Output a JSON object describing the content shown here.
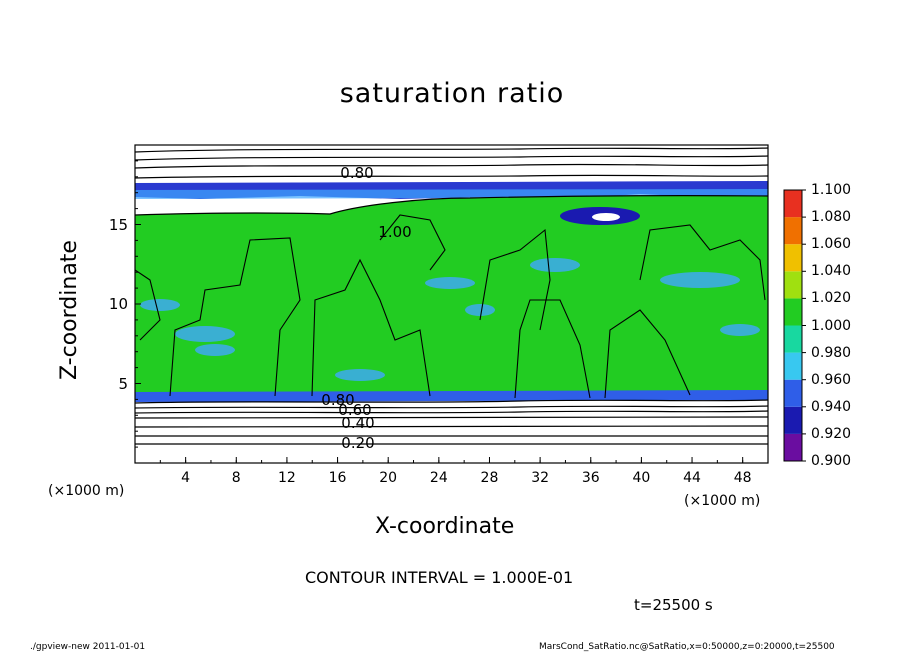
{
  "chart_data": {
    "type": "heatmap",
    "title": "saturation ratio",
    "xlabel": "X-coordinate",
    "ylabel": "Z-coordinate",
    "x_unit_left": "(×1000 m)",
    "x_unit_right": "(×1000 m)",
    "xlim": [
      0,
      50
    ],
    "ylim": [
      0,
      20
    ],
    "x_ticks": [
      "4",
      "8",
      "12",
      "16",
      "20",
      "24",
      "28",
      "32",
      "36",
      "40",
      "44",
      "48"
    ],
    "y_ticks": [
      "5",
      "10",
      "15"
    ],
    "colorbar": {
      "levels": [
        "0.900",
        "0.920",
        "0.940",
        "0.960",
        "0.980",
        "1.000",
        "1.020",
        "1.040",
        "1.060",
        "1.080",
        "1.100"
      ],
      "colors": [
        "#6a0da0",
        "#1a1ab0",
        "#2f5ee8",
        "#38c8f0",
        "#18d8a0",
        "#22cc22",
        "#a0e010",
        "#f0c000",
        "#f07000",
        "#e83020"
      ]
    },
    "contour_labels": [
      "0.80",
      "1.00",
      "0.60",
      "0.40",
      "0.20",
      "0.80"
    ],
    "colors": {
      "green": "#22cc22",
      "light_blue": "#40a8ff",
      "deep_blue": "#2a3ad0",
      "contour": "#000000"
    }
  },
  "annotations": {
    "contour_interval": "CONTOUR INTERVAL = 1.000E-01",
    "time": "t=25500 s",
    "footer_left": "./gpview-new  2011-01-01",
    "footer_right": "MarsCond_SatRatio.nc@SatRatio,x=0:50000,z=0:20000,t=25500"
  }
}
